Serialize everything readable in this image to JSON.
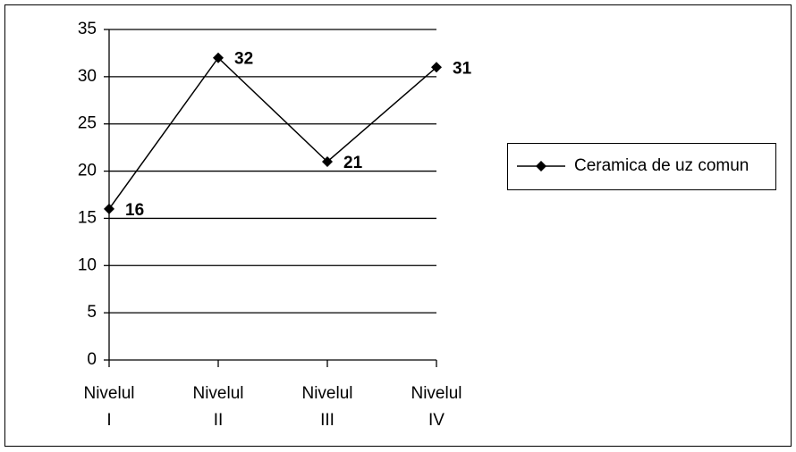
{
  "chart_data": {
    "type": "line",
    "categories": [
      "Nivelul I",
      "Nivelul II",
      "Nivelul III",
      "Nivelul IV"
    ],
    "series": [
      {
        "name": "Ceramica de uz comun",
        "color": "#000000",
        "values": [
          16,
          32,
          21,
          31
        ]
      }
    ],
    "ylim": [
      0,
      35
    ],
    "yticks": [
      0,
      5,
      10,
      15,
      20,
      25,
      30,
      35
    ],
    "grid": true,
    "legend": "right"
  }
}
